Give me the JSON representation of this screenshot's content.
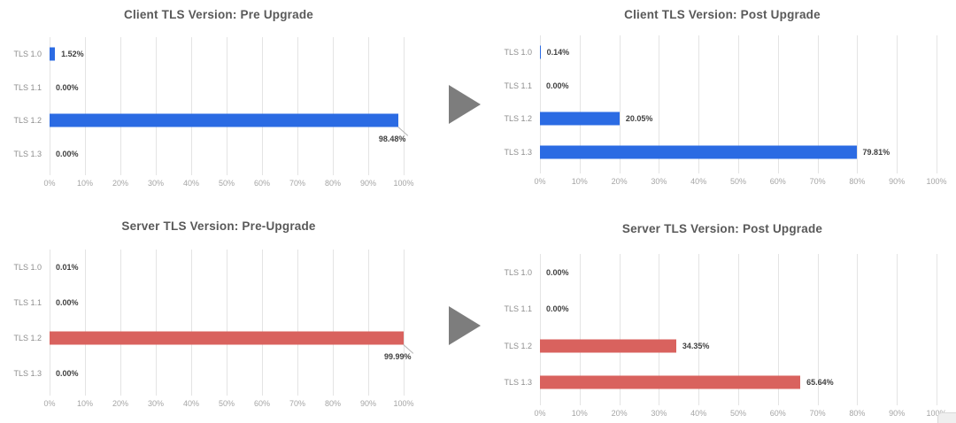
{
  "palette": {
    "client_bar_color": "#2b6be3",
    "server_bar_color": "#d9625e",
    "arrow_color": "#7d7d7d",
    "title_color": "#595959",
    "gridline_color": "#e4e4e4",
    "background": "#ffffff"
  },
  "icons": {
    "top_arrow": "right-arrow-icon",
    "bottom_arrow": "right-arrow-icon"
  },
  "chart_data": [
    {
      "type": "bar",
      "orientation": "horizontal",
      "title": "Client TLS Version: Pre Upgrade",
      "categories": [
        "TLS 1.0",
        "TLS 1.1",
        "TLS 1.2",
        "TLS 1.3"
      ],
      "values": [
        1.52,
        0.0,
        98.48,
        0.0
      ],
      "data_labels": [
        "1.52%",
        "0.00%",
        "98.48%",
        "0.00%"
      ],
      "callout_below": [
        false,
        false,
        true,
        false
      ],
      "bar_color": "#2b6be3",
      "xlim": [
        0,
        100
      ],
      "x_ticks": [
        "0%",
        "10%",
        "20%",
        "30%",
        "40%",
        "50%",
        "60%",
        "70%",
        "80%",
        "90%",
        "100%"
      ],
      "grid": true,
      "legend": "none"
    },
    {
      "type": "bar",
      "orientation": "horizontal",
      "title": "Client TLS Version: Post Upgrade",
      "categories": [
        "TLS 1.0",
        "TLS 1.1",
        "TLS 1.2",
        "TLS 1.3"
      ],
      "values": [
        0.14,
        0.0,
        20.05,
        79.81
      ],
      "data_labels": [
        "0.14%",
        "0.00%",
        "20.05%",
        "79.81%"
      ],
      "callout_below": [
        false,
        false,
        false,
        false
      ],
      "bar_color": "#2b6be3",
      "xlim": [
        0,
        100
      ],
      "x_ticks": [
        "0%",
        "10%",
        "20%",
        "30%",
        "40%",
        "50%",
        "60%",
        "70%",
        "80%",
        "90%",
        "100%"
      ],
      "grid": true,
      "legend": "none"
    },
    {
      "type": "bar",
      "orientation": "horizontal",
      "title": "Server TLS Version: Pre-Upgrade",
      "categories": [
        "TLS 1.0",
        "TLS 1.1",
        "TLS 1.2",
        "TLS 1.3"
      ],
      "values": [
        0.01,
        0.0,
        99.99,
        0.0
      ],
      "data_labels": [
        "0.01%",
        "0.00%",
        "99.99%",
        "0.00%"
      ],
      "callout_below": [
        false,
        false,
        true,
        false
      ],
      "bar_color": "#d9625e",
      "xlim": [
        0,
        100
      ],
      "x_ticks": [
        "0%",
        "10%",
        "20%",
        "30%",
        "40%",
        "50%",
        "60%",
        "70%",
        "80%",
        "90%",
        "100%"
      ],
      "grid": true,
      "legend": "none"
    },
    {
      "type": "bar",
      "orientation": "horizontal",
      "title": "Server TLS Version: Post Upgrade",
      "categories": [
        "TLS 1.0",
        "TLS 1.1",
        "TLS 1.2",
        "TLS 1.3"
      ],
      "values": [
        0.0,
        0.0,
        34.35,
        65.64
      ],
      "data_labels": [
        "0.00%",
        "0.00%",
        "34.35%",
        "65.64%"
      ],
      "callout_below": [
        false,
        false,
        false,
        false
      ],
      "bar_color": "#d9625e",
      "xlim": [
        0,
        100
      ],
      "x_ticks": [
        "0%",
        "10%",
        "20%",
        "30%",
        "40%",
        "50%",
        "60%",
        "70%",
        "80%",
        "90%",
        "100%"
      ],
      "grid": true,
      "legend": "none"
    }
  ]
}
